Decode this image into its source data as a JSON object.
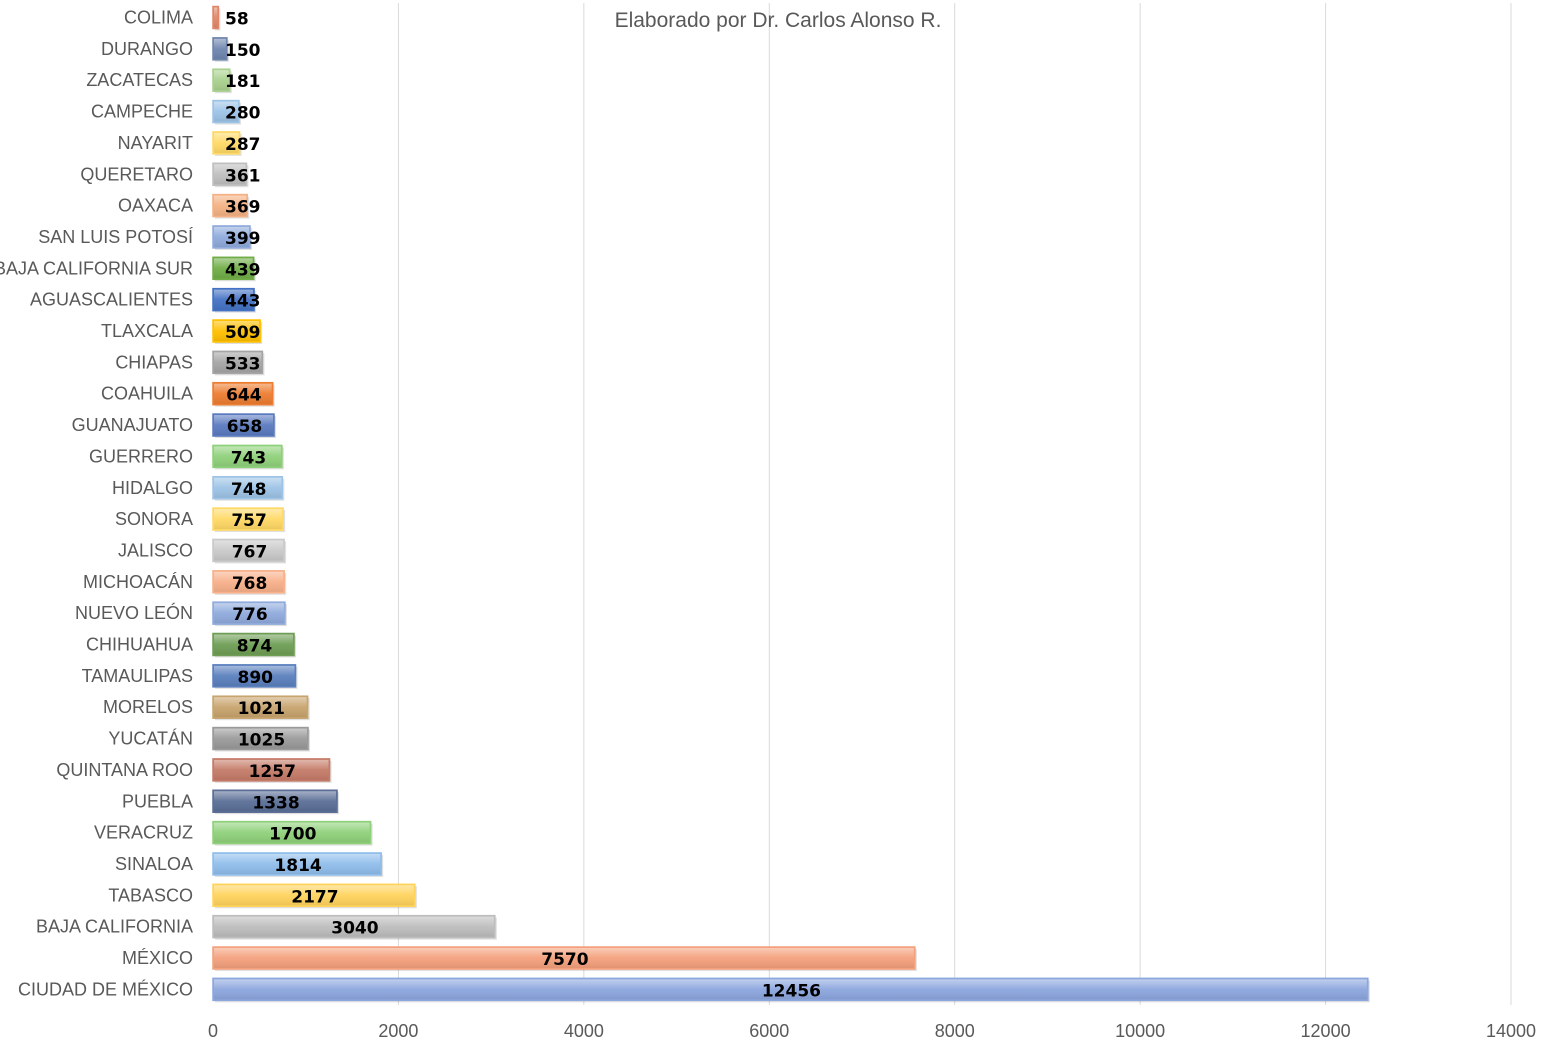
{
  "chart_data": {
    "type": "bar",
    "orientation": "horizontal",
    "title": "",
    "subtitle": "Elaborado por Dr. Carlos Alonso R.",
    "xlabel": "",
    "ylabel": "",
    "xlim": [
      0,
      14000
    ],
    "x_ticks": [
      0,
      2000,
      4000,
      6000,
      8000,
      10000,
      12000,
      14000
    ],
    "grid": true,
    "legend": "none",
    "categories": [
      "COLIMA",
      "DURANGO",
      "ZACATECAS",
      "CAMPECHE",
      "NAYARIT",
      "QUERETARO",
      "OAXACA",
      "SAN LUIS POTOSÍ",
      "BAJA CALIFORNIA SUR",
      "AGUASCALIENTES",
      "TLAXCALA",
      "CHIAPAS",
      "COAHUILA",
      "GUANAJUATO",
      "GUERRERO",
      "HIDALGO",
      "SONORA",
      "JALISCO",
      "MICHOACÁN",
      "NUEVO LEÓN",
      "CHIHUAHUA",
      "TAMAULIPAS",
      "MORELOS",
      "YUCATÁN",
      "QUINTANA ROO",
      "PUEBLA",
      "VERACRUZ",
      "SINALOA",
      "TABASCO",
      "BAJA CALIFORNIA",
      "MÉXICO",
      "CIUDAD DE MÉXICO"
    ],
    "values": [
      58,
      150,
      181,
      280,
      287,
      361,
      369,
      399,
      439,
      443,
      509,
      533,
      644,
      658,
      743,
      748,
      757,
      767,
      768,
      776,
      874,
      890,
      1021,
      1025,
      1257,
      1338,
      1700,
      1814,
      2177,
      3040,
      7570,
      12456
    ],
    "colors": [
      "#E0876A",
      "#6F86AE",
      "#A9D18E",
      "#9DC3E6",
      "#FFD966",
      "#BFBFBF",
      "#F4B183",
      "#8FAADC",
      "#70AD47",
      "#4472C4",
      "#FFC000",
      "#A5A5A5",
      "#ED7D31",
      "#5B7BC0",
      "#8FD17A",
      "#9DC3E6",
      "#FFD966",
      "#C9C9C9",
      "#F8B08A",
      "#8FAADC",
      "#6E9E55",
      "#5A80BE",
      "#C8A46E",
      "#9A9A9A",
      "#C57B68",
      "#5A6E96",
      "#8FD17A",
      "#8FBDEB",
      "#FFD35C",
      "#BDBDBD",
      "#F4A07C",
      "#8CA6DE"
    ]
  }
}
